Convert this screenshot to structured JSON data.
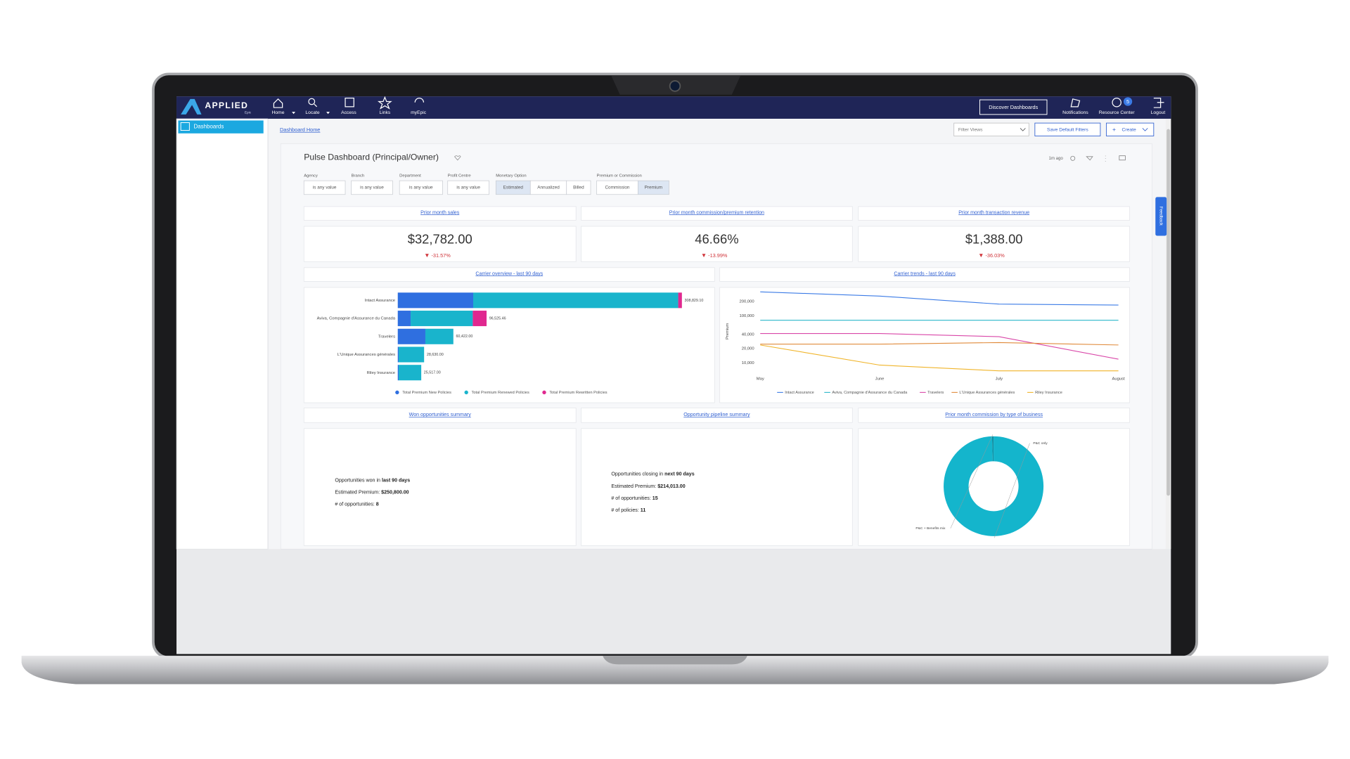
{
  "nav": {
    "brand": "APPLIED",
    "brand_sub": "Epic",
    "items": [
      "Home",
      "Locate",
      "Access",
      "Links",
      "myEpic"
    ],
    "discover": "Discover Dashboards",
    "notifications": "Notifications",
    "resource_center": "Resource Center",
    "badge": "5",
    "logout": "Logout"
  },
  "sidebar": {
    "item": "Dashboards"
  },
  "toolbar": {
    "breadcrumb": "Dashboard Home",
    "filter_views": "Filter Views",
    "save": "Save Default Filters",
    "create": "Create"
  },
  "dashboard": {
    "title": "Pulse Dashboard (Principal/Owner)",
    "updated": "1m ago",
    "feedback": "Feedback"
  },
  "filters": [
    {
      "label": "Agency",
      "options": [
        "is any value"
      ]
    },
    {
      "label": "Branch",
      "options": [
        "is any value"
      ]
    },
    {
      "label": "Department",
      "options": [
        "is any value"
      ]
    },
    {
      "label": "Profit Centre",
      "options": [
        "is any value"
      ]
    },
    {
      "label": "Monetary Option",
      "options": [
        "Estimated",
        "Annualized",
        "Billed"
      ],
      "selected": 0
    },
    {
      "label": "Premium or Commission",
      "options": [
        "Commission",
        "Premium"
      ],
      "selected": 1
    }
  ],
  "kpis": [
    {
      "title": "Prior month sales",
      "value": "$32,782.00",
      "change": "-31.57%"
    },
    {
      "title": "Prior month commission/premium retention",
      "value": "46.66%",
      "change": "-13.99%"
    },
    {
      "title": "Prior month transaction revenue",
      "value": "$1,388.00",
      "change": "-36.03%"
    }
  ],
  "summaries": [
    {
      "title": "Won opportunities summary",
      "lines": [
        [
          "Opportunities won in ",
          "last 90 days"
        ],
        [
          "Estimated Premium: ",
          "$250,800.00"
        ],
        [
          "# of opportunities: ",
          "8"
        ]
      ]
    },
    {
      "title": "Opportunity pipeline summary",
      "lines": [
        [
          "Opportunities closing in ",
          "next 90 days"
        ],
        [
          "Estimated Premium: ",
          "$214,013.00"
        ],
        [
          "# of opportunities: ",
          "15"
        ],
        [
          "# of policies: ",
          "11"
        ]
      ]
    }
  ],
  "chart_data": [
    {
      "type": "bar",
      "orientation": "horizontal",
      "stacked": true,
      "title": "Carrier overview - last 90 days",
      "categories": [
        "Intact Assurance",
        "Aviva, Compagnie d'Assurance du Canada",
        "Travelers",
        "L'Unique Assurances générales",
        "Riley Insurance"
      ],
      "series": [
        {
          "name": "Total Premium New Policies",
          "color": "#2f6fe0",
          "values": [
            82000,
            14000,
            30000,
            1000,
            1000
          ]
        },
        {
          "name": "Total Premium Renewed Policies",
          "color": "#19b4cc",
          "values": [
            222829.1,
            67525.46,
            30422,
            27630,
            24517
          ]
        },
        {
          "name": "Total Premium Rewritten Policies",
          "color": "#e0288f",
          "values": [
            4000,
            15000,
            0,
            0,
            0
          ]
        }
      ],
      "total_labels": [
        "308,829.10",
        "96,525.46",
        "60,422.00",
        "28,630.00",
        "25,517.00"
      ],
      "xlim": [
        0,
        350000
      ],
      "legend": "bottom"
    },
    {
      "type": "line",
      "title": "Carrier trends - last 90 days",
      "y_label": "Premium",
      "log_scale": true,
      "categories": [
        "May",
        "June",
        "July",
        "August"
      ],
      "series": [
        {
          "name": "Intact Assurance",
          "color": "#3b7be6",
          "values": [
            320000,
            260000,
            176000,
            168000
          ]
        },
        {
          "name": "Aviva, Compagnie d'Assurance du Canada",
          "color": "#2ab7c9",
          "values": [
            80000,
            80000,
            80000,
            80000
          ]
        },
        {
          "name": "Travelers",
          "color": "#d946a8",
          "values": [
            42000,
            42000,
            36000,
            12000
          ]
        },
        {
          "name": "L'Unique Assurances générales",
          "color": "#e08a3a",
          "values": [
            25000,
            25000,
            27000,
            24000
          ]
        },
        {
          "name": "Riley Insurance",
          "color": "#f0b429",
          "values": [
            24000,
            9000,
            6800,
            6800
          ]
        }
      ],
      "ylim": [
        6500,
        350000
      ],
      "yticks": [
        {
          "value": 10000,
          "label": "10,000"
        },
        {
          "value": 20000,
          "label": "20,000"
        },
        {
          "value": 40000,
          "label": "40,000"
        },
        {
          "value": 100000,
          "label": "100,000"
        },
        {
          "value": 200000,
          "label": "200,000"
        }
      ],
      "legend": "bottom"
    },
    {
      "type": "pie",
      "donut": true,
      "title": "Prior month commission by type of business",
      "categories": [
        "P&C only",
        "P&C + Benefits mix"
      ],
      "values": [
        99.5,
        0.5
      ],
      "colors": [
        "#14b5cc",
        "#0f8fa3"
      ]
    }
  ]
}
